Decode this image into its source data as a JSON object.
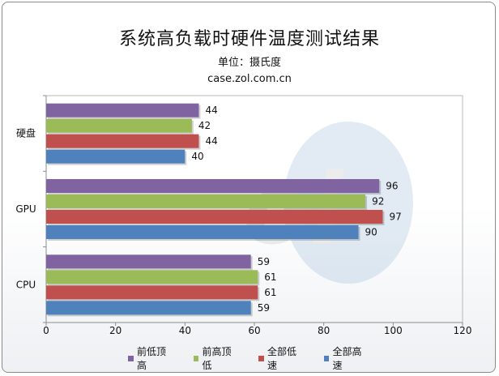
{
  "title": "系统高负载时硬件温度测试结果",
  "subtitle": "单位：摄氏度",
  "source": "case.zol.com.cn",
  "chart_data": {
    "type": "bar",
    "orientation": "horizontal",
    "categories": [
      "硬盘",
      "GPU",
      "CPU"
    ],
    "series": [
      {
        "name": "前低顶高",
        "color": "#8064a2",
        "values": [
          44,
          96,
          59
        ]
      },
      {
        "name": "前高顶低",
        "color": "#9bbb59",
        "values": [
          42,
          92,
          61
        ]
      },
      {
        "name": "全部低速",
        "color": "#c0504d",
        "values": [
          44,
          97,
          61
        ]
      },
      {
        "name": "全部高速",
        "color": "#4f81bd",
        "values": [
          40,
          90,
          59
        ]
      }
    ],
    "xlim": [
      0,
      120
    ],
    "xticks": [
      0,
      20,
      40,
      60,
      80,
      100,
      120
    ],
    "grid": false,
    "legend_position": "bottom"
  }
}
